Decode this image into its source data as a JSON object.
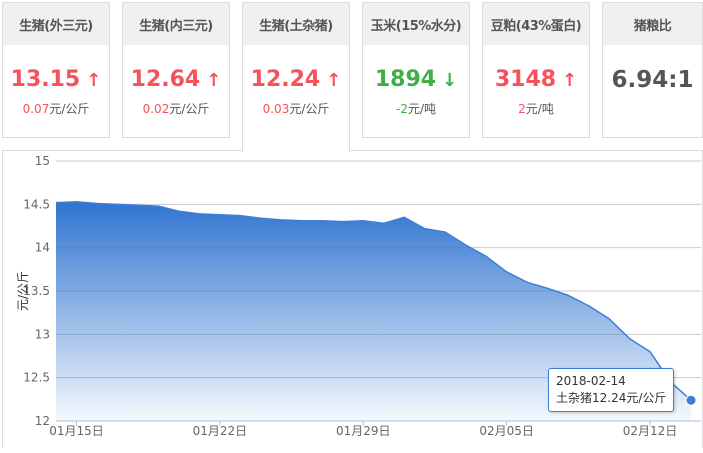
{
  "cards": [
    {
      "title": "生猪(外三元)",
      "value": "13.15",
      "trend": "up",
      "change": "0.07",
      "unit": "元/公斤"
    },
    {
      "title": "生猪(内三元)",
      "value": "12.64",
      "trend": "up",
      "change": "0.02",
      "unit": "元/公斤"
    },
    {
      "title": "生猪(土杂猪)",
      "value": "12.24",
      "trend": "up",
      "change": "0.03",
      "unit": "元/公斤"
    },
    {
      "title": "玉米(15%水分)",
      "value": "1894",
      "trend": "down",
      "change": "-2",
      "unit": "元/吨"
    },
    {
      "title": "豆粕(43%蛋白)",
      "value": "3148",
      "trend": "up",
      "change": "2",
      "unit": "元/吨"
    },
    {
      "title": "猪粮比",
      "value": "6.94:1"
    }
  ],
  "colors": {
    "up": "#f5525c",
    "down": "#3fae49",
    "line": "#3d7fd8"
  },
  "icons": {
    "up": "arrow-up-icon",
    "down": "arrow-down-icon"
  },
  "tooltip": {
    "date": "2018-02-14",
    "text": "土杂猪12.24元/公斤"
  },
  "chart_data": {
    "type": "area",
    "ylabel": "元/公斤",
    "ylim": [
      12,
      15
    ],
    "yticks": [
      "12",
      "12.5",
      "13",
      "13.5",
      "14",
      "14.5",
      "15"
    ],
    "xticks": [
      "01月15日",
      "01月22日",
      "01月29日",
      "02月05日",
      "02月12日"
    ],
    "x": [
      "01-14",
      "01-15",
      "01-16",
      "01-17",
      "01-18",
      "01-19",
      "01-20",
      "01-21",
      "01-22",
      "01-23",
      "01-24",
      "01-25",
      "01-26",
      "01-27",
      "01-28",
      "01-29",
      "01-30",
      "01-31",
      "02-01",
      "02-02",
      "02-03",
      "02-04",
      "02-05",
      "02-06",
      "02-07",
      "02-08",
      "02-09",
      "02-10",
      "02-11",
      "02-12",
      "02-13",
      "02-14"
    ],
    "values": [
      14.52,
      14.53,
      14.51,
      14.5,
      14.49,
      14.48,
      14.42,
      14.39,
      14.38,
      14.37,
      14.34,
      14.32,
      14.31,
      14.31,
      14.3,
      14.31,
      14.28,
      14.35,
      14.22,
      14.18,
      14.03,
      13.9,
      13.72,
      13.6,
      13.53,
      13.45,
      13.33,
      13.18,
      12.95,
      12.8,
      12.45,
      12.24
    ],
    "grid": true
  }
}
